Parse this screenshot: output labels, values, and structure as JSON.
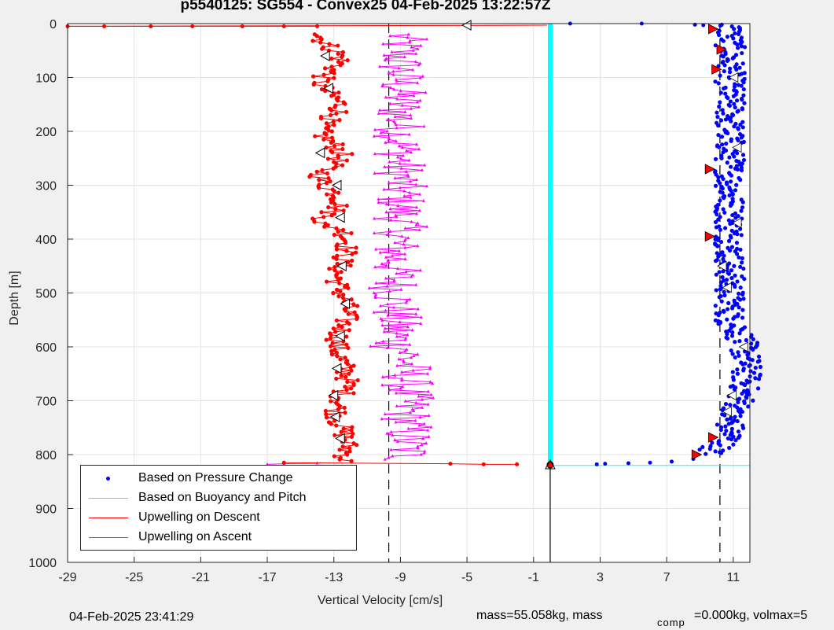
{
  "chart_data": {
    "type": "scatter",
    "title": "p5540125: SG554 - Convex25 04-Feb-2025 13:22:57Z",
    "xlabel": "Vertical Velocity [cm/s]",
    "ylabel": "Depth [m]",
    "xlim": [
      -29,
      12
    ],
    "ylim": [
      0,
      1000
    ],
    "y_reversed": true,
    "grid": true,
    "xticks": [
      -29,
      -25,
      -21,
      -17,
      -13,
      -9,
      -5,
      -1,
      3,
      7,
      11
    ],
    "yticks": [
      0,
      100,
      200,
      300,
      400,
      500,
      600,
      700,
      800,
      900,
      1000
    ],
    "legend_position": "bottom-left",
    "series": [
      {
        "name": "Based on Pressure Change",
        "color": "#0000ff",
        "style": "dots",
        "depth_range": [
          0,
          820
        ],
        "mean_velocity": 10.5,
        "surface_points": [
          [
            5.5,
            0
          ],
          [
            1.2,
            0
          ],
          [
            8.7,
            2
          ],
          [
            9.2,
            3
          ]
        ],
        "bottom_points": [
          [
            2.8,
            818
          ],
          [
            3.3,
            817
          ],
          [
            4.7,
            816
          ],
          [
            6.0,
            815
          ],
          [
            7.3,
            813
          ],
          [
            8.6,
            808
          ]
        ]
      },
      {
        "name": "Based on Buoyancy and Pitch",
        "color": "#00ffff",
        "style": "line",
        "vertical_at": 0.0,
        "depth_range": [
          0,
          820
        ],
        "bottom_depth": 820,
        "bottom_x_range": [
          0,
          12
        ]
      },
      {
        "name": "Upwelling on Descent",
        "color": "#ff0000",
        "style": "line-dots",
        "depth_range": [
          5,
          815
        ],
        "mean_velocity": -12.5,
        "surface_points": [
          [
            -29,
            5
          ],
          [
            -26.8,
            5
          ],
          [
            -24,
            5
          ],
          [
            -21.5,
            5
          ],
          [
            -18.5,
            5
          ],
          [
            -16,
            5
          ],
          [
            -14,
            5
          ]
        ],
        "bottom_points": [
          [
            -16,
            815
          ],
          [
            -6,
            817
          ],
          [
            -4,
            818
          ],
          [
            -2,
            818
          ]
        ]
      },
      {
        "name": "Upwelling on Ascent",
        "color": "#ff00ff",
        "style": "line-triangles",
        "depth_range": [
          5,
          815
        ],
        "mean_velocity": -9.0,
        "bottom_points": [
          [
            -17,
            818
          ],
          [
            -16,
            817
          ],
          [
            -14,
            816
          ]
        ]
      }
    ],
    "reference_lines": [
      {
        "style": "dashed",
        "x": -9.7,
        "color": "#000000"
      },
      {
        "style": "dashed",
        "x": 10.2,
        "color": "#000000"
      },
      {
        "style": "solid",
        "x": 0.0,
        "depth_from": 820,
        "color": "#000000"
      }
    ]
  },
  "footer": {
    "timestamp": "04-Feb-2025 23:41:29",
    "mass": "mass=55.058kg, mass",
    "mass_sub": "comp",
    "mass2": "=0.000kg, volmax=5"
  }
}
